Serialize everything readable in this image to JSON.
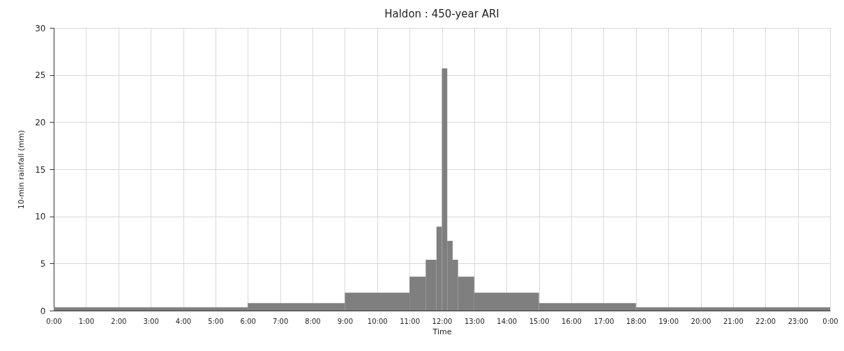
{
  "chart_data": {
    "type": "histogram",
    "title": "Haldon : 450-year ARI",
    "xlabel": "Time",
    "ylabel": "10-min rainfall (mm)",
    "bins": [
      0,
      6,
      9,
      11,
      11.5,
      11.8333,
      12,
      12.1667,
      12.3333,
      12.5,
      13,
      15,
      18,
      24
    ],
    "values": [
      0.35,
      0.8,
      1.9,
      3.6,
      5.4,
      8.9,
      25.7,
      7.4,
      5.4,
      3.6,
      1.9,
      0.8,
      0.35
    ],
    "color": "#7f7f7f",
    "xlim": [
      0,
      24
    ],
    "xticks": [
      {
        "value": 0,
        "label": "0:00"
      },
      {
        "value": 1,
        "label": "1:00"
      },
      {
        "value": 2,
        "label": "2:00"
      },
      {
        "value": 3,
        "label": "3:00"
      },
      {
        "value": 4,
        "label": "4:00"
      },
      {
        "value": 5,
        "label": "5:00"
      },
      {
        "value": 6,
        "label": "6:00"
      },
      {
        "value": 7,
        "label": "7:00"
      },
      {
        "value": 8,
        "label": "8:00"
      },
      {
        "value": 9,
        "label": "9:00"
      },
      {
        "value": 10,
        "label": "10:00"
      },
      {
        "value": 11,
        "label": "11:00"
      },
      {
        "value": 12,
        "label": "12:00"
      },
      {
        "value": 13,
        "label": "13:00"
      },
      {
        "value": 14,
        "label": "14:00"
      },
      {
        "value": 15,
        "label": "15:00"
      },
      {
        "value": 16,
        "label": "16:00"
      },
      {
        "value": 17,
        "label": "17:00"
      },
      {
        "value": 18,
        "label": "18:00"
      },
      {
        "value": 19,
        "label": "19:00"
      },
      {
        "value": 20,
        "label": "20:00"
      },
      {
        "value": 21,
        "label": "21:00"
      },
      {
        "value": 22,
        "label": "22:00"
      },
      {
        "value": 23,
        "label": "23:00"
      },
      {
        "value": 24,
        "label": "0:00"
      }
    ],
    "ylim": [
      0,
      30
    ],
    "yticks": [
      0,
      5,
      10,
      15,
      20,
      25,
      30
    ],
    "grid": true
  }
}
